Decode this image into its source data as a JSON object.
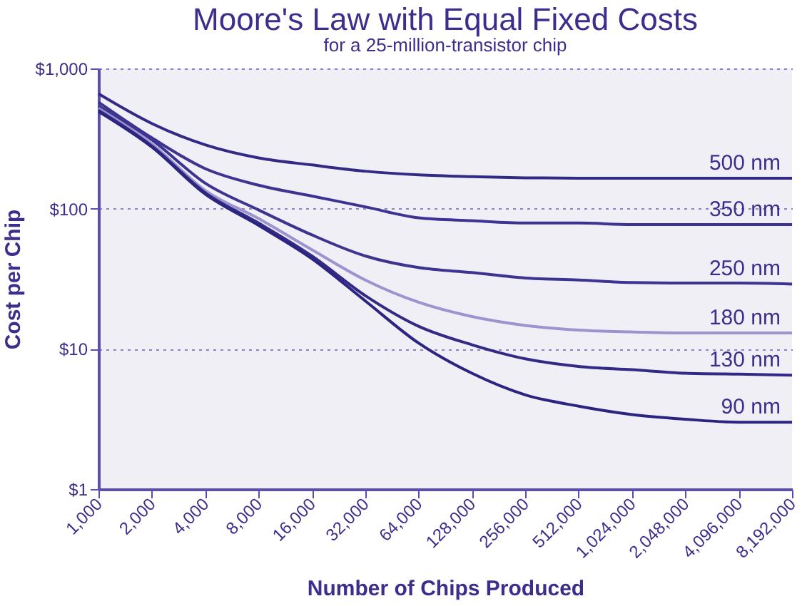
{
  "chart_data": {
    "type": "line",
    "title": "Moore's Law with Equal Fixed Costs",
    "subtitle": "for a 25-million-transistor chip",
    "xlabel": "Number of Chips Produced",
    "ylabel": "Cost per Chip",
    "log": "xy",
    "grid": "y",
    "legend": false,
    "x": [
      1000,
      2000,
      4000,
      8000,
      16000,
      32000,
      64000,
      128000,
      256000,
      512000,
      1024000,
      2048000,
      4096000,
      8192000
    ],
    "xlim": [
      1000,
      8192000
    ],
    "xticks": [
      {
        "value": 1000,
        "label": "1,000"
      },
      {
        "value": 2000,
        "label": "2,000"
      },
      {
        "value": 4000,
        "label": "4,000"
      },
      {
        "value": 8000,
        "label": "8,000"
      },
      {
        "value": 16000,
        "label": "16,000"
      },
      {
        "value": 32000,
        "label": "32,000"
      },
      {
        "value": 64000,
        "label": "64,000"
      },
      {
        "value": 128000,
        "label": "128,000"
      },
      {
        "value": 256000,
        "label": "256,000"
      },
      {
        "value": 512000,
        "label": "512,000"
      },
      {
        "value": 1024000,
        "label": "1,024,000"
      },
      {
        "value": 2048000,
        "label": "2,048,000"
      },
      {
        "value": 4096000,
        "label": "4,096,000"
      },
      {
        "value": 8192000,
        "label": "8,192,000"
      }
    ],
    "ylim": [
      1,
      1000
    ],
    "yticks": [
      {
        "value": 1,
        "label": "$1"
      },
      {
        "value": 10,
        "label": "$10"
      },
      {
        "value": 100,
        "label": "$100"
      },
      {
        "value": 1000,
        "label": "$1,000"
      }
    ],
    "series": [
      {
        "name": "500 nm",
        "color": "#332a86",
        "values": [
          660,
          405,
          285,
          230,
          205,
          185,
          174,
          169,
          166,
          165,
          165,
          165,
          165,
          165
        ]
      },
      {
        "name": "350 nm",
        "color": "#3d3390",
        "values": [
          575,
          320,
          193,
          147,
          123,
          103,
          86,
          82,
          79,
          79,
          77,
          77,
          77,
          77
        ]
      },
      {
        "name": "250 nm",
        "color": "#3d3390",
        "values": [
          540,
          310,
          152,
          98,
          65,
          46,
          38,
          35,
          32,
          31,
          29.7,
          29.5,
          29.5,
          29
        ]
      },
      {
        "name": "180 nm",
        "color": "#9d93cf",
        "values": [
          520,
          290,
          135,
          85,
          51,
          31,
          21.5,
          17,
          14.7,
          13.6,
          13.2,
          13,
          13,
          13
        ]
      },
      {
        "name": "130 nm",
        "color": "#332a86",
        "values": [
          503,
          280,
          130,
          79,
          46,
          24,
          14.5,
          10.7,
          8.5,
          7.5,
          7.1,
          6.7,
          6.6,
          6.5
        ]
      },
      {
        "name": "90 nm",
        "color": "#2b2480",
        "values": [
          493,
          275,
          127,
          76,
          44,
          22,
          11,
          6.7,
          4.7,
          3.9,
          3.4,
          3.15,
          3,
          3
        ]
      }
    ]
  }
}
